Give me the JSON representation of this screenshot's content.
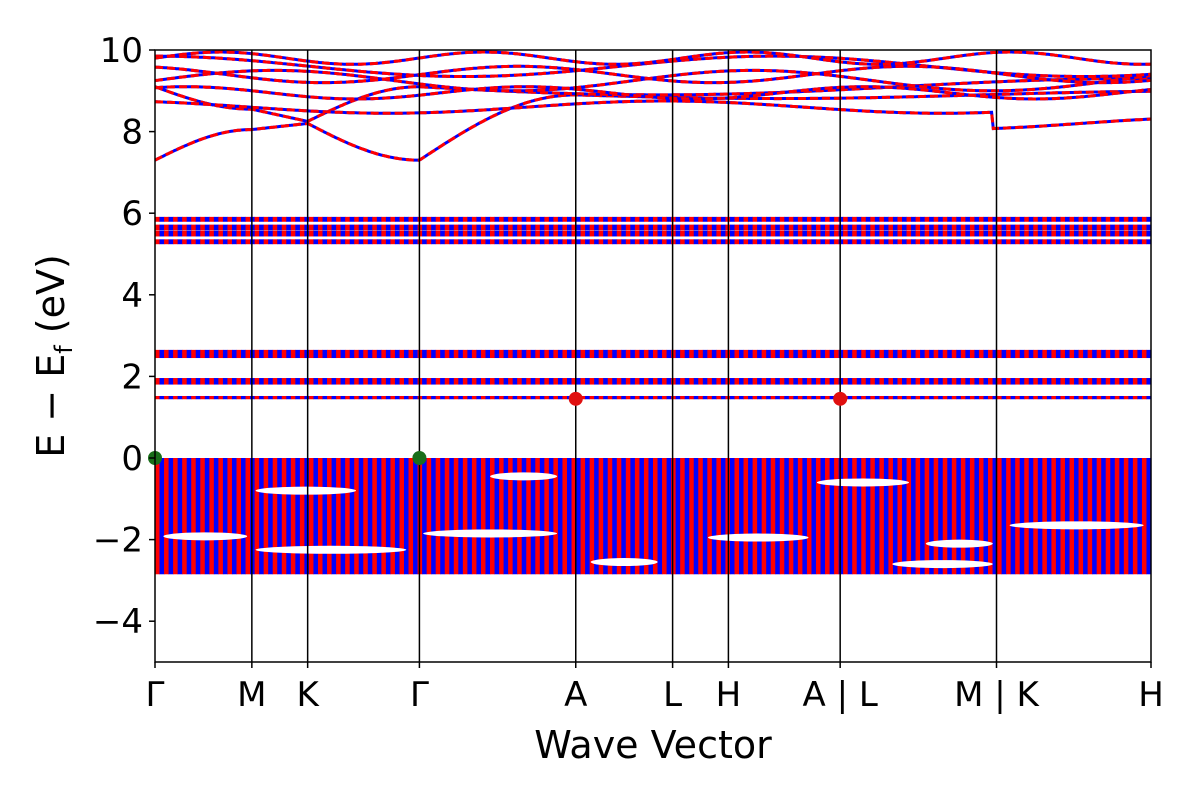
{
  "chart_data": {
    "type": "line",
    "title": "",
    "xlabel": "Wave Vector",
    "ylabel": "E − E",
    "ylabel_subscript": "f",
    "ylabel_unit": " (eV)",
    "ylim": [
      -5,
      10
    ],
    "yticks": [
      {
        "value": -4,
        "label": "−4"
      },
      {
        "value": -2,
        "label": "−2"
      },
      {
        "value": 0,
        "label": "0"
      },
      {
        "value": 2,
        "label": "2"
      },
      {
        "value": 4,
        "label": "4"
      },
      {
        "value": 6,
        "label": "6"
      },
      {
        "value": 8,
        "label": "8"
      },
      {
        "value": 10,
        "label": "10"
      }
    ],
    "kpath": [
      {
        "label": "Γ",
        "x": 0.0
      },
      {
        "label": "M",
        "x": 0.578
      },
      {
        "label": "K",
        "x": 0.911
      },
      {
        "label": "Γ",
        "x": 1.578
      },
      {
        "label": "A",
        "x": 2.511
      },
      {
        "label": "L",
        "x": 3.089
      },
      {
        "label": "H",
        "x": 3.422
      },
      {
        "label": "A | L",
        "x": 4.089
      },
      {
        "label": "M | K",
        "x": 5.022
      },
      {
        "label": "H",
        "x": 5.944
      }
    ],
    "xlim": [
      0.0,
      5.944
    ],
    "spin_colors": {
      "spin_up": "#0000ff",
      "spin_down": "#ff0000"
    },
    "special_points": [
      {
        "type": "vbm",
        "x": 0.0,
        "y": 0.0,
        "color": "#1a6e1a"
      },
      {
        "type": "vbm",
        "x": 1.578,
        "y": 0.0,
        "color": "#1a6e1a"
      },
      {
        "type": "cbm",
        "x": 2.511,
        "y": 1.45,
        "color": "#e01010"
      },
      {
        "type": "cbm",
        "x": 4.089,
        "y": 1.45,
        "color": "#e01010"
      }
    ],
    "flat_bands": [
      {
        "energy": 1.48,
        "width": 0.08
      },
      {
        "energy": 1.88,
        "width": 0.16
      },
      {
        "energy": 2.55,
        "width": 0.2
      },
      {
        "energy": 5.3,
        "width": 0.12
      },
      {
        "energy": 5.5,
        "width": 0.14
      },
      {
        "energy": 5.65,
        "width": 0.14
      },
      {
        "energy": 5.85,
        "width": 0.12
      }
    ],
    "valence_manifold": {
      "top": 0.0,
      "bottom": -2.85
    }
  }
}
